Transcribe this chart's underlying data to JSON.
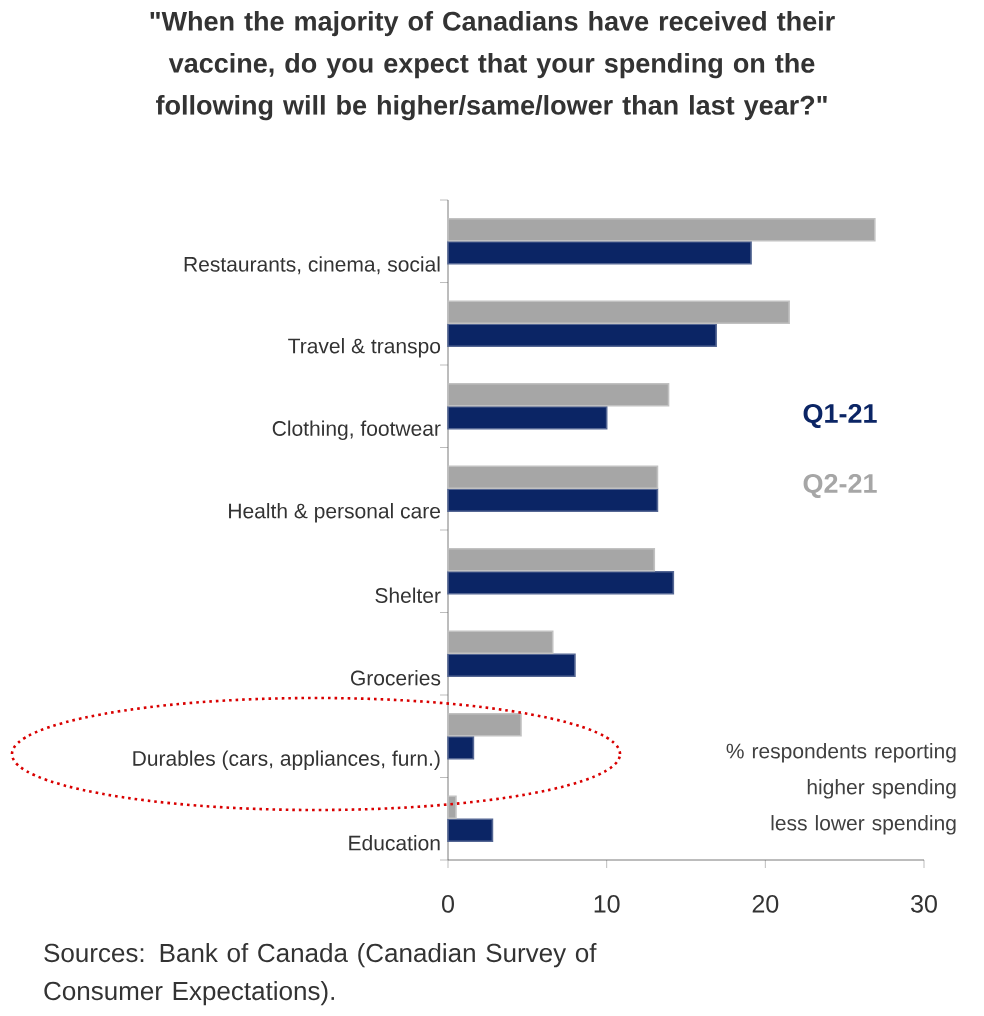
{
  "chart_data": {
    "type": "bar",
    "orientation": "horizontal",
    "title": "\"When the majority of Canadians have received their vaccine, do you expect that your spending on the following will be higher/same/lower than last year?\"",
    "categories": [
      "Restaurants, cinema, social",
      "Travel & transpo",
      "Clothing, footwear",
      "Health & personal care",
      "Shelter",
      "Groceries",
      "Durables (cars, appliances, furn.)",
      "Education"
    ],
    "series": [
      {
        "name": "Q1-21",
        "color": "#0b2565",
        "values": [
          19.1,
          16.9,
          10.0,
          13.2,
          14.2,
          8.0,
          1.6,
          2.8
        ]
      },
      {
        "name": "Q2-21",
        "color": "#a6a6a6",
        "values": [
          26.9,
          21.5,
          13.9,
          13.2,
          13.0,
          6.6,
          4.6,
          0.5
        ]
      }
    ],
    "xlim": [
      0,
      30
    ],
    "xticks": [
      0,
      10,
      20,
      30
    ],
    "legend": "right",
    "grid": false,
    "annotations": [
      "% respondents reporting higher spending less lower spending",
      "Sources: Bank of Canada (Canadian Survey of Consumer Expectations)."
    ]
  }
}
